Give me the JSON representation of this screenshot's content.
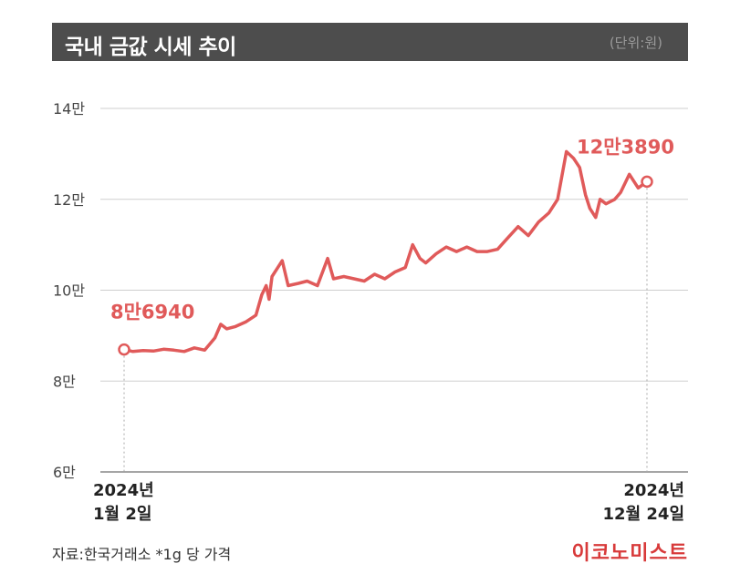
{
  "header": {
    "title": "국내 금값 시세 추이",
    "unit": "(단위:원)"
  },
  "footer": {
    "source": "자료:한국거래소 *1g 당 가격",
    "brand": "이코노미스트"
  },
  "colors": {
    "line": "#e05a5a",
    "title_bar": "#4d4d4d",
    "grid": "#cfcfcf",
    "brand": "#d83a3a"
  },
  "chart_data": {
    "type": "line",
    "title": "국내 금값 시세 추이",
    "unit": "(단위:원)",
    "y_ticks": [
      {
        "value": 60000,
        "label": "6만"
      },
      {
        "value": 80000,
        "label": "8만"
      },
      {
        "value": 100000,
        "label": "10만"
      },
      {
        "value": 120000,
        "label": "12만"
      },
      {
        "value": 140000,
        "label": "14만"
      }
    ],
    "ylim": [
      60000,
      140000
    ],
    "xlim": [
      "2024-01-02",
      "2024-12-24"
    ],
    "x_labels": [
      {
        "date": "2024-01-02",
        "line1": "2024년",
        "line2": "1월 2일"
      },
      {
        "date": "2024-12-24",
        "line1": "2024년",
        "line2": "12월 24일"
      }
    ],
    "annotations": [
      {
        "date": "2024-01-02",
        "value": 86940,
        "label": "8만6940"
      },
      {
        "date": "2024-12-24",
        "value": 123890,
        "label": "12만3890"
      }
    ],
    "grid": true,
    "series": [
      {
        "points": [
          [
            "2024-01-02",
            86940
          ],
          [
            "2024-01-08",
            86500
          ],
          [
            "2024-01-15",
            86700
          ],
          [
            "2024-01-22",
            86600
          ],
          [
            "2024-01-29",
            87000
          ],
          [
            "2024-02-05",
            86800
          ],
          [
            "2024-02-12",
            86500
          ],
          [
            "2024-02-19",
            87300
          ],
          [
            "2024-02-26",
            86800
          ],
          [
            "2024-03-04",
            89500
          ],
          [
            "2024-03-08",
            92500
          ],
          [
            "2024-03-12",
            91500
          ],
          [
            "2024-03-18",
            92000
          ],
          [
            "2024-03-25",
            93000
          ],
          [
            "2024-04-01",
            94500
          ],
          [
            "2024-04-05",
            99000
          ],
          [
            "2024-04-08",
            101000
          ],
          [
            "2024-04-10",
            98000
          ],
          [
            "2024-04-12",
            103000
          ],
          [
            "2024-04-16",
            105000
          ],
          [
            "2024-04-19",
            106500
          ],
          [
            "2024-04-23",
            101000
          ],
          [
            "2024-04-30",
            101500
          ],
          [
            "2024-05-06",
            102000
          ],
          [
            "2024-05-13",
            101000
          ],
          [
            "2024-05-20",
            107000
          ],
          [
            "2024-05-24",
            102500
          ],
          [
            "2024-05-31",
            103000
          ],
          [
            "2024-06-07",
            102500
          ],
          [
            "2024-06-14",
            102000
          ],
          [
            "2024-06-21",
            103500
          ],
          [
            "2024-06-28",
            102500
          ],
          [
            "2024-07-05",
            104000
          ],
          [
            "2024-07-12",
            105000
          ],
          [
            "2024-07-17",
            110000
          ],
          [
            "2024-07-22",
            107000
          ],
          [
            "2024-07-26",
            106000
          ],
          [
            "2024-08-02",
            108000
          ],
          [
            "2024-08-09",
            109500
          ],
          [
            "2024-08-16",
            108500
          ],
          [
            "2024-08-23",
            109500
          ],
          [
            "2024-08-30",
            108500
          ],
          [
            "2024-09-06",
            108500
          ],
          [
            "2024-09-13",
            109000
          ],
          [
            "2024-09-20",
            111500
          ],
          [
            "2024-09-27",
            114000
          ],
          [
            "2024-10-04",
            112000
          ],
          [
            "2024-10-11",
            115000
          ],
          [
            "2024-10-18",
            117000
          ],
          [
            "2024-10-24",
            120000
          ],
          [
            "2024-10-30",
            130500
          ],
          [
            "2024-11-04",
            129000
          ],
          [
            "2024-11-08",
            127000
          ],
          [
            "2024-11-12",
            121000
          ],
          [
            "2024-11-15",
            118000
          ],
          [
            "2024-11-19",
            116000
          ],
          [
            "2024-11-22",
            120000
          ],
          [
            "2024-11-26",
            119000
          ],
          [
            "2024-12-02",
            120000
          ],
          [
            "2024-12-06",
            121500
          ],
          [
            "2024-12-12",
            125500
          ],
          [
            "2024-12-18",
            122500
          ],
          [
            "2024-12-24",
            123890
          ]
        ]
      }
    ]
  }
}
